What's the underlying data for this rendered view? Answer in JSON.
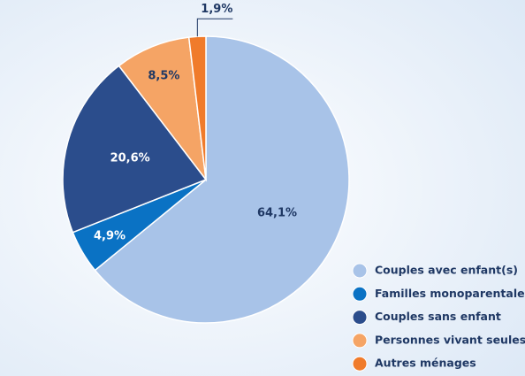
{
  "chart_data": {
    "type": "pie",
    "categories": [
      "Couples avec enfant(s)",
      "Familles monoparentales",
      "Couples sans enfant",
      "Personnes vivant seules",
      "Autres ménages"
    ],
    "values": [
      64.1,
      4.9,
      20.6,
      8.5,
      1.9
    ],
    "value_labels": [
      "64,1%",
      "4,9%",
      "20,6%",
      "8,5%",
      "1,9%"
    ],
    "colors": [
      "#a8c3e8",
      "#0a72c4",
      "#2b4d8c",
      "#f5a465",
      "#f07b2b"
    ],
    "legend": "bottom-right"
  }
}
